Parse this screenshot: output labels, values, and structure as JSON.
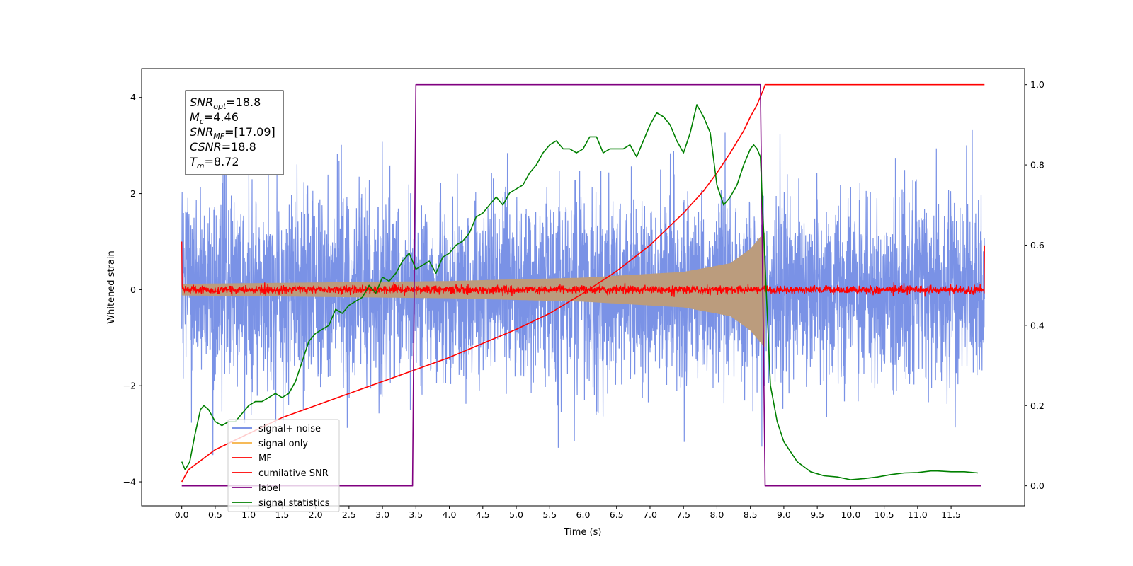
{
  "chart_data": {
    "type": "line",
    "xlabel": "Time (s)",
    "ylabel": "Whitened strain",
    "xlim": [
      -0.6,
      12.6
    ],
    "ylim": [
      -4.5,
      4.6
    ],
    "y2lim": [
      -0.05,
      1.04
    ],
    "xticks": [
      "0.0",
      "0.5",
      "1.0",
      "1.5",
      "2.0",
      "2.5",
      "3.0",
      "3.5",
      "4.0",
      "4.5",
      "5.0",
      "5.5",
      "6.0",
      "6.5",
      "7.0",
      "7.5",
      "8.0",
      "8.5",
      "9.0",
      "9.5",
      "10.0",
      "10.5",
      "11.0",
      "11.5"
    ],
    "yticks": [
      "4",
      "2",
      "0",
      "−2",
      "−4"
    ],
    "y2ticks": [
      "1.0",
      "0.8",
      "0.6",
      "0.4",
      "0.2",
      "0.0"
    ],
    "annotation": {
      "lines": [
        {
          "sym": "SNR",
          "sub": "opt",
          "value": "=18.8"
        },
        {
          "sym": "M",
          "sub": "c",
          "value": "=4.46"
        },
        {
          "sym": "SNR",
          "sub": "MF",
          "value": "=[17.09]"
        },
        {
          "sym": "CSNR",
          "sub": "",
          "value": "=18.8"
        },
        {
          "sym": "T",
          "sub": "m",
          "value": "=8.72"
        }
      ]
    },
    "legend": {
      "position": "lower-left",
      "entries": [
        "signal+ noise",
        "signal only",
        "MF",
        "cumilative SNR",
        "label",
        "signal statistics"
      ]
    },
    "colors": {
      "signal_noise": "#6b86e3",
      "signal_only": "#f5b041",
      "signal_overlap": "#bb9c7d",
      "mf": "#ff0000",
      "csnr": "#ff0000",
      "label": "#800080",
      "stats": "#008000"
    },
    "series": [
      {
        "name": "signal+ noise",
        "kind": "noise",
        "t_start": 0.0,
        "t_end": 12.0,
        "amplitude_sd": 1.0,
        "peak_range": [
          -4.05,
          4.15
        ]
      },
      {
        "name": "signal only",
        "kind": "chirp_envelope",
        "t_start": 0.0,
        "t_end": 8.72,
        "envelope": {
          "t": [
            0.0,
            2.0,
            4.0,
            6.0,
            7.5,
            8.2,
            8.5,
            8.65,
            8.72
          ],
          "y": [
            0.12,
            0.15,
            0.18,
            0.25,
            0.37,
            0.55,
            0.85,
            1.1,
            1.2
          ]
        }
      },
      {
        "name": "MF",
        "kind": "noise_small",
        "t_start": 0.0,
        "t_end": 12.0,
        "amplitude_sd": 0.045,
        "edges": {
          "start": 1.0,
          "end": 0.92
        }
      },
      {
        "name": "cumilative SNR",
        "axis": "right",
        "x": [
          0.0,
          0.1,
          0.5,
          1.0,
          1.5,
          2.0,
          2.5,
          3.0,
          3.5,
          4.0,
          4.5,
          5.0,
          5.5,
          6.0,
          6.5,
          7.0,
          7.5,
          7.8,
          8.0,
          8.2,
          8.4,
          8.5,
          8.6,
          8.7,
          8.72,
          8.75,
          12.0
        ],
        "y": [
          0.01,
          0.04,
          0.09,
          0.13,
          0.17,
          0.2,
          0.23,
          0.26,
          0.29,
          0.32,
          0.355,
          0.39,
          0.43,
          0.48,
          0.535,
          0.6,
          0.68,
          0.735,
          0.78,
          0.83,
          0.885,
          0.92,
          0.95,
          0.99,
          1.0,
          1.0,
          1.0
        ]
      },
      {
        "name": "label",
        "axis": "right",
        "x": [
          0.0,
          3.45,
          3.5,
          8.65,
          8.72,
          11.95
        ],
        "y": [
          0.0,
          0.0,
          1.0,
          1.0,
          0.0,
          0.0
        ]
      },
      {
        "name": "signal statistics",
        "axis": "right",
        "x": [
          0.0,
          0.05,
          0.12,
          0.2,
          0.28,
          0.33,
          0.4,
          0.5,
          0.6,
          0.7,
          0.8,
          0.9,
          1.0,
          1.1,
          1.2,
          1.3,
          1.4,
          1.5,
          1.6,
          1.7,
          1.8,
          1.9,
          2.0,
          2.1,
          2.2,
          2.3,
          2.4,
          2.5,
          2.6,
          2.7,
          2.8,
          2.9,
          3.0,
          3.1,
          3.2,
          3.3,
          3.4,
          3.5,
          3.6,
          3.7,
          3.8,
          3.9,
          4.0,
          4.1,
          4.2,
          4.3,
          4.4,
          4.5,
          4.6,
          4.7,
          4.8,
          4.9,
          5.0,
          5.1,
          5.2,
          5.3,
          5.4,
          5.5,
          5.6,
          5.7,
          5.8,
          5.9,
          6.0,
          6.1,
          6.2,
          6.3,
          6.4,
          6.5,
          6.6,
          6.7,
          6.8,
          6.9,
          7.0,
          7.1,
          7.2,
          7.3,
          7.4,
          7.5,
          7.6,
          7.7,
          7.8,
          7.9,
          8.0,
          8.1,
          8.2,
          8.3,
          8.4,
          8.5,
          8.55,
          8.6,
          8.65,
          8.72,
          8.8,
          8.9,
          9.0,
          9.2,
          9.4,
          9.6,
          9.8,
          10.0,
          10.2,
          10.4,
          10.6,
          10.8,
          11.0,
          11.2,
          11.3,
          11.5,
          11.7,
          11.9
        ],
        "y": [
          0.06,
          0.04,
          0.06,
          0.13,
          0.19,
          0.2,
          0.19,
          0.16,
          0.15,
          0.16,
          0.16,
          0.18,
          0.2,
          0.21,
          0.21,
          0.22,
          0.23,
          0.22,
          0.23,
          0.26,
          0.31,
          0.36,
          0.38,
          0.39,
          0.4,
          0.44,
          0.43,
          0.45,
          0.46,
          0.47,
          0.5,
          0.48,
          0.52,
          0.51,
          0.53,
          0.56,
          0.58,
          0.54,
          0.55,
          0.56,
          0.53,
          0.57,
          0.58,
          0.6,
          0.61,
          0.63,
          0.67,
          0.68,
          0.7,
          0.72,
          0.7,
          0.73,
          0.74,
          0.75,
          0.78,
          0.8,
          0.83,
          0.85,
          0.86,
          0.84,
          0.84,
          0.83,
          0.84,
          0.87,
          0.87,
          0.83,
          0.84,
          0.84,
          0.84,
          0.85,
          0.82,
          0.86,
          0.9,
          0.93,
          0.92,
          0.9,
          0.86,
          0.83,
          0.88,
          0.95,
          0.92,
          0.88,
          0.75,
          0.7,
          0.72,
          0.75,
          0.8,
          0.84,
          0.85,
          0.84,
          0.82,
          0.55,
          0.25,
          0.16,
          0.11,
          0.06,
          0.035,
          0.025,
          0.022,
          0.015,
          0.018,
          0.022,
          0.028,
          0.032,
          0.033,
          0.037,
          0.037,
          0.035,
          0.035,
          0.032
        ]
      }
    ]
  }
}
